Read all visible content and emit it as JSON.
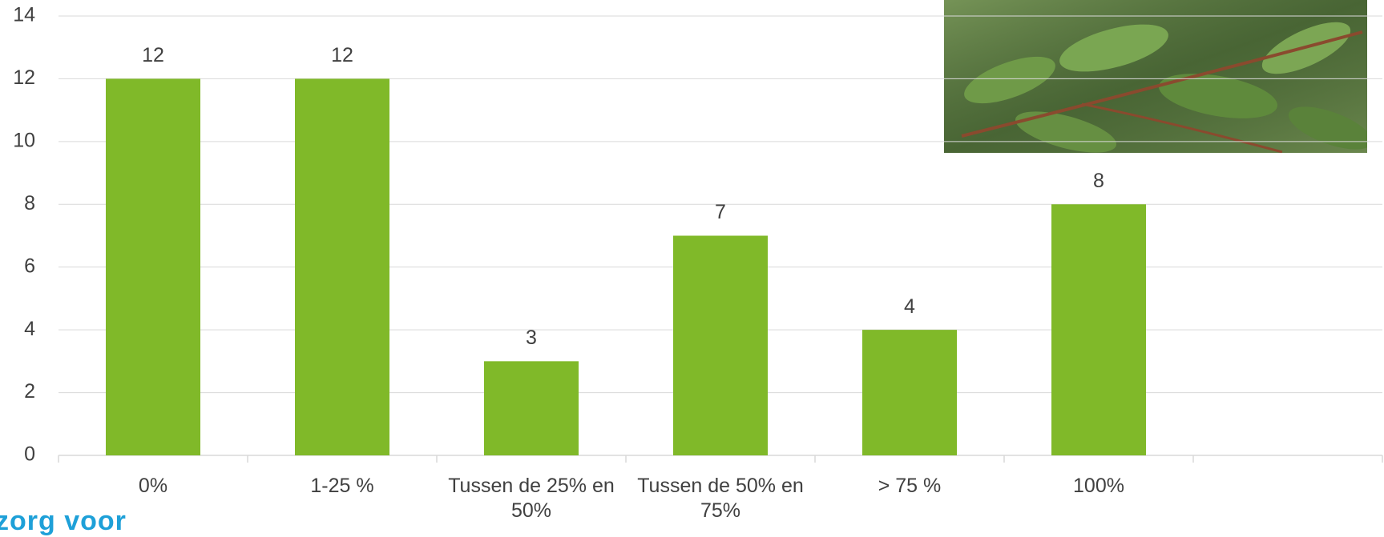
{
  "chart_data": {
    "type": "bar",
    "categories": [
      "0%",
      "1-25 %",
      "Tussen de 25% en 50%",
      "Tussen de 50% en 75%",
      "> 75 %",
      "100%",
      null
    ],
    "values": [
      12,
      12,
      3,
      7,
      4,
      8,
      null
    ],
    "color": "#80b929",
    "ylim": [
      0,
      14
    ],
    "yticks": [
      0,
      2,
      4,
      6,
      8,
      10,
      12,
      14
    ],
    "grid": true
  },
  "footer_text": "zorg voor"
}
